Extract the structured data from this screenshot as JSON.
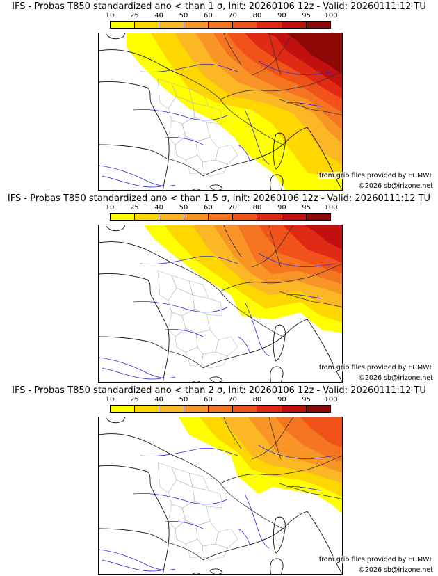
{
  "colorbar": {
    "ticks": [
      "10",
      "25",
      "40",
      "50",
      "60",
      "70",
      "80",
      "90",
      "95",
      "100"
    ],
    "colors": [
      "#ffff00",
      "#ffd700",
      "#fbb824",
      "#f99426",
      "#f47421",
      "#f0521a",
      "#e02a16",
      "#c01010",
      "#8f0808"
    ]
  },
  "panels": [
    {
      "title": "IFS - Probas T850  standardized ano < than 1 σ, Init: 20260106 12z - Valid: 20260111:12 TU",
      "source": "from grib files provided by ECMWF",
      "copyright": "©2026 sb@irizone.net",
      "level": 1
    },
    {
      "title": "IFS - Probas T850  standardized ano < than 1.5 σ, Init: 20260106 12z - Valid: 20260111:12 TU",
      "source": "from grib files provided by ECMWF",
      "copyright": "©2026 sb@irizone.net",
      "level": 2
    },
    {
      "title": "IFS - Probas T850  standardized ano < than 2 σ, Init: 20260106 12z - Valid: 20260111:12 TU",
      "source": "from grib files provided by ECMWF",
      "copyright": "©2026 sb@irizone.net",
      "level": 3
    }
  ]
}
